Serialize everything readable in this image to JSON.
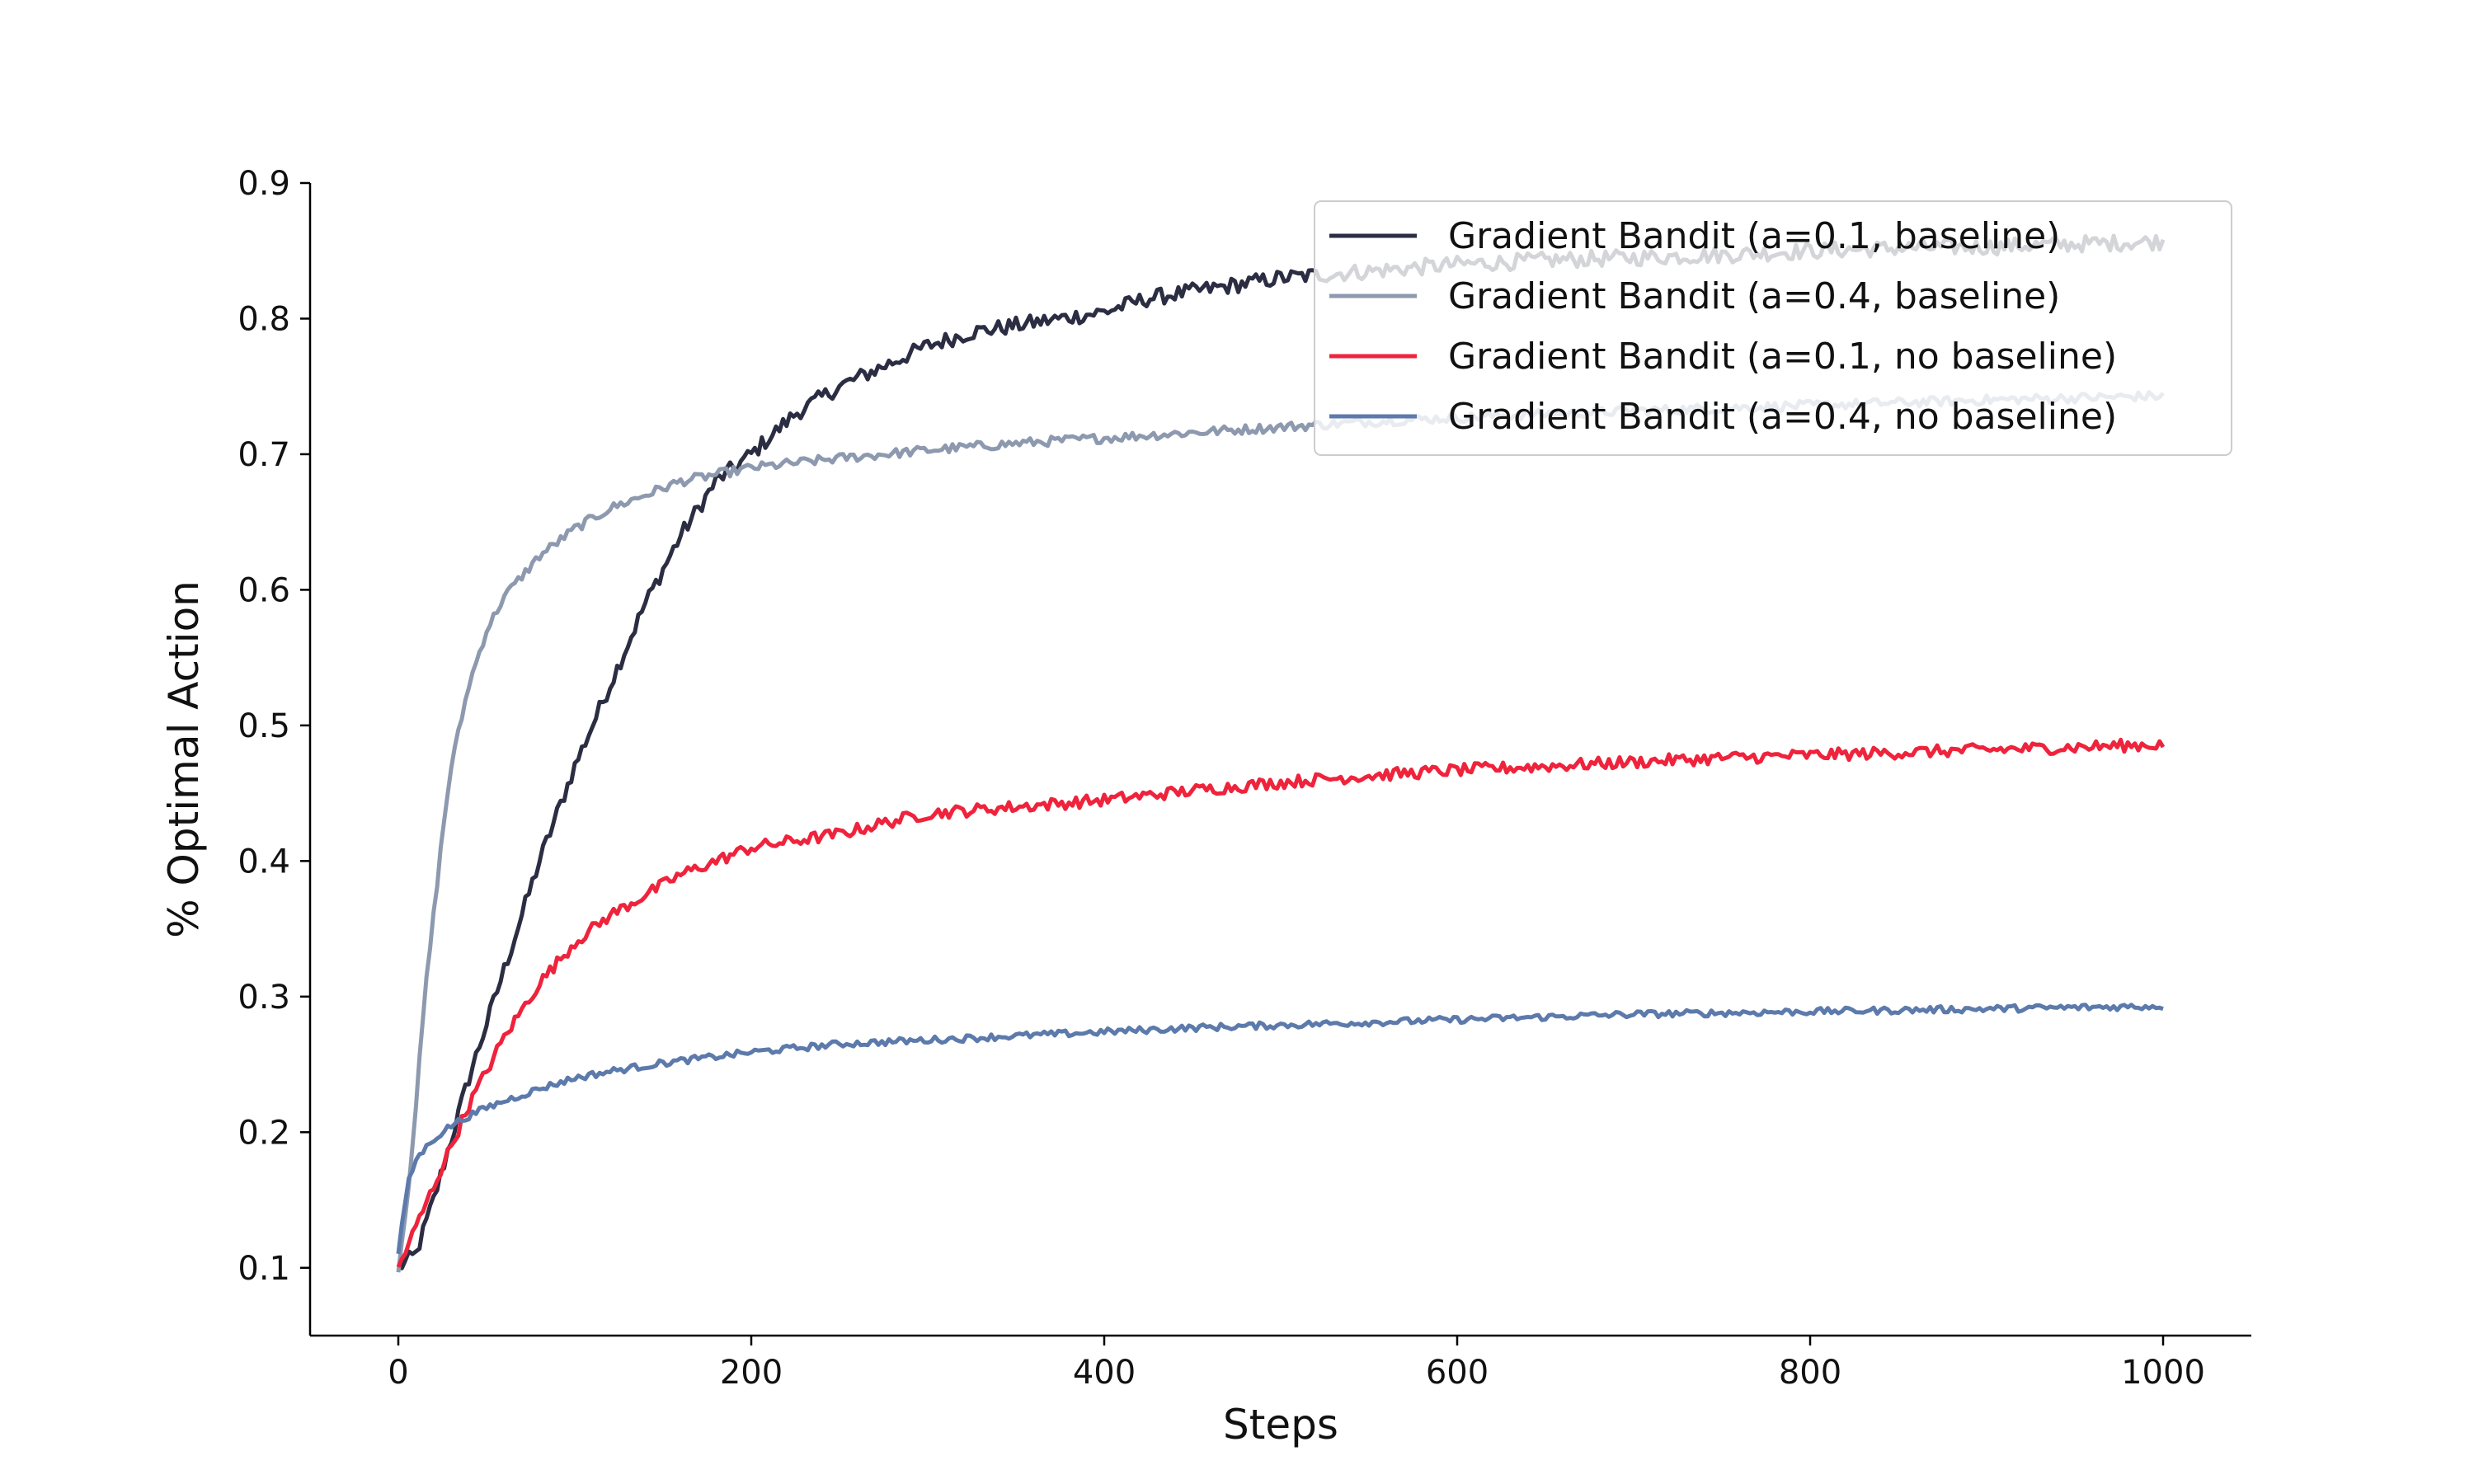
{
  "chart_data": {
    "type": "line",
    "title": "",
    "xlabel": "Steps",
    "ylabel": "% Optimal Action",
    "xlim": [
      -50,
      1050
    ],
    "ylim": [
      0.05,
      0.9
    ],
    "xticks": [
      0,
      200,
      400,
      600,
      800,
      1000
    ],
    "yticks": [
      0.1,
      0.2,
      0.3,
      0.4,
      0.5,
      0.6,
      0.7,
      0.8,
      0.9
    ],
    "grid": false,
    "legend_position": "top-right",
    "series": [
      {
        "name": "Gradient Bandit (a=0.1, baseline)",
        "color": "#2b2d42",
        "x": [
          0,
          10,
          20,
          40,
          60,
          80,
          100,
          120,
          140,
          160,
          180,
          200,
          225,
          250,
          275,
          300,
          325,
          350,
          375,
          400,
          425,
          450,
          475,
          500,
          550,
          600,
          650,
          700,
          750,
          800,
          850,
          900,
          950,
          1000
        ],
        "y": [
          0.1,
          0.11,
          0.15,
          0.24,
          0.32,
          0.4,
          0.47,
          0.53,
          0.59,
          0.64,
          0.68,
          0.7,
          0.73,
          0.75,
          0.765,
          0.78,
          0.79,
          0.795,
          0.8,
          0.805,
          0.815,
          0.82,
          0.825,
          0.83,
          0.835,
          0.84,
          0.843,
          0.845,
          0.847,
          0.85,
          0.852,
          0.853,
          0.855,
          0.857
        ]
      },
      {
        "name": "Gradient Bandit (a=0.4, baseline)",
        "color": "#8d99ae",
        "x": [
          0,
          5,
          10,
          15,
          20,
          25,
          30,
          40,
          50,
          60,
          70,
          80,
          100,
          120,
          140,
          160,
          180,
          200,
          250,
          300,
          350,
          400,
          450,
          500,
          550,
          600,
          700,
          800,
          900,
          1000
        ],
        "y": [
          0.1,
          0.15,
          0.22,
          0.3,
          0.36,
          0.42,
          0.47,
          0.53,
          0.57,
          0.595,
          0.61,
          0.625,
          0.645,
          0.66,
          0.67,
          0.68,
          0.685,
          0.69,
          0.697,
          0.703,
          0.708,
          0.712,
          0.716,
          0.72,
          0.724,
          0.727,
          0.732,
          0.736,
          0.74,
          0.743
        ]
      },
      {
        "name": "Gradient Bandit (a=0.1, no baseline)",
        "color": "#ef233c",
        "x": [
          0,
          10,
          20,
          30,
          40,
          50,
          60,
          70,
          80,
          90,
          100,
          120,
          140,
          160,
          180,
          200,
          225,
          250,
          275,
          300,
          350,
          400,
          450,
          500,
          550,
          600,
          650,
          700,
          750,
          800,
          850,
          900,
          950,
          1000
        ],
        "y": [
          0.1,
          0.13,
          0.16,
          0.19,
          0.22,
          0.245,
          0.27,
          0.29,
          0.31,
          0.325,
          0.34,
          0.36,
          0.375,
          0.39,
          0.4,
          0.41,
          0.415,
          0.42,
          0.428,
          0.435,
          0.44,
          0.445,
          0.452,
          0.458,
          0.463,
          0.467,
          0.47,
          0.473,
          0.476,
          0.478,
          0.48,
          0.482,
          0.484,
          0.486
        ]
      },
      {
        "name": "Gradient Bandit (a=0.4, no baseline)",
        "color": "#5c7aab",
        "x": [
          0,
          5,
          10,
          20,
          30,
          40,
          50,
          60,
          80,
          100,
          125,
          150,
          175,
          200,
          250,
          300,
          350,
          400,
          450,
          500,
          550,
          600,
          650,
          700,
          750,
          800,
          850,
          900,
          950,
          1000
        ],
        "y": [
          0.11,
          0.16,
          0.18,
          0.195,
          0.205,
          0.212,
          0.218,
          0.223,
          0.232,
          0.24,
          0.246,
          0.251,
          0.255,
          0.259,
          0.265,
          0.268,
          0.271,
          0.274,
          0.277,
          0.279,
          0.281,
          0.283,
          0.285,
          0.287,
          0.288,
          0.289,
          0.29,
          0.291,
          0.292,
          0.293
        ]
      }
    ]
  }
}
